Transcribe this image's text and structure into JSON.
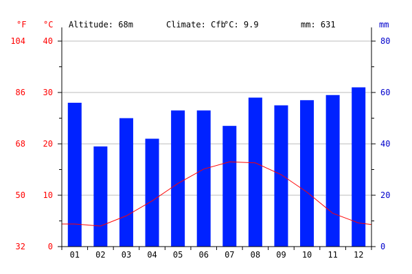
{
  "header": {
    "unit_f": "°F",
    "unit_c": "°C",
    "unit_mm": "mm",
    "altitude": "Altitude: 68m",
    "climate": "Climate: Cfb",
    "temp": "°C: 9.9",
    "precip": "mm: 631"
  },
  "colors": {
    "bars": "#0022ff",
    "temp_line": "#ff0000",
    "axis_text_temp": "#ff0000",
    "axis_text_precip": "#0000cc",
    "grid": "#bbbbbb",
    "axis": "#000000"
  },
  "chart_data": {
    "type": "bar",
    "categories": [
      "01",
      "02",
      "03",
      "04",
      "05",
      "06",
      "07",
      "08",
      "09",
      "10",
      "11",
      "12"
    ],
    "series": [
      {
        "values": [
          56,
          39,
          50,
          42,
          53,
          53,
          47,
          58,
          55,
          57,
          59,
          62
        ]
      },
      {
        "values": [
          4.4,
          4.0,
          6.0,
          8.9,
          12.3,
          15.1,
          16.5,
          16.3,
          14.0,
          10.6,
          6.5,
          4.6
        ]
      }
    ],
    "y_left_c_ticks": [
      0,
      10,
      20,
      30,
      40
    ],
    "y_left_f_ticks": [
      32,
      50,
      68,
      86,
      104
    ],
    "y_right_ticks": [
      0,
      20,
      40,
      60,
      80
    ],
    "ylim_c": [
      0,
      40
    ],
    "ylim_mm": [
      0,
      80
    ],
    "grid": true
  }
}
